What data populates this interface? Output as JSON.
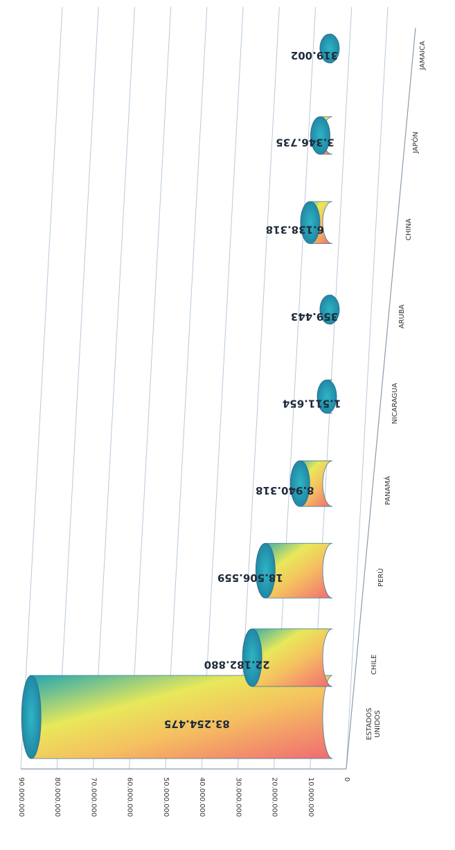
{
  "chart_data": {
    "type": "bar",
    "style": "3d-cylinder",
    "orientation": "rotated-page",
    "categories": [
      "ESTADOS UNIDOS",
      "CHILE",
      "PERÚ",
      "PANAMÁ",
      "NICARAGUA",
      "ARUBA",
      "CHINA",
      "JAPÓN",
      "JAMAICA"
    ],
    "values": [
      83254475,
      22182880,
      18506559,
      8940318,
      1511654,
      359443,
      6138318,
      3346735,
      319002
    ],
    "data_labels": [
      "83.254.475",
      "22.182.880",
      "18.506.559",
      "8.940.318",
      "1.511.654",
      "359.443",
      "6.138.318",
      "3.346.735",
      "319.002"
    ],
    "yticks": [
      "0",
      "10.000.000",
      "20.000.000",
      "30.000.000",
      "40.000.000",
      "50.000.000",
      "60.000.000",
      "70.000.000",
      "80.000.000",
      "90.000.000"
    ],
    "ylim": [
      0,
      90000000
    ],
    "grid": true,
    "title": "",
    "xlabel": "",
    "ylabel": ""
  }
}
